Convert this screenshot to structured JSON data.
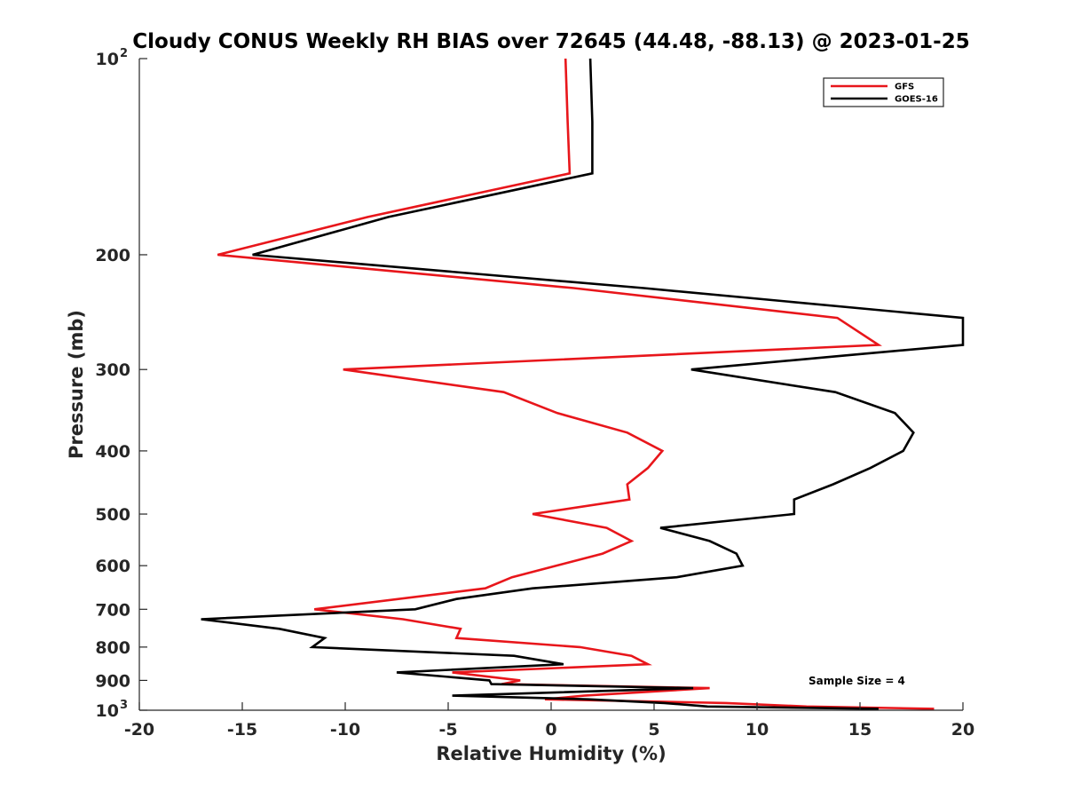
{
  "chart_data": {
    "type": "line",
    "title": "Cloudy CONUS Weekly RH BIAS over 72645 (44.48, -88.13) @ 2023-01-25",
    "xlabel": "Relative Humidity (%)",
    "ylabel": "Pressure (mb)",
    "xlim": [
      -20,
      20
    ],
    "ylim": [
      100,
      1000
    ],
    "yscale": "log",
    "y_reversed": true,
    "grid": false,
    "legend_position": "top-right",
    "x_ticks": [
      {
        "value": -20,
        "label": "-20"
      },
      {
        "value": -15,
        "label": "-15"
      },
      {
        "value": -10,
        "label": "-10"
      },
      {
        "value": -5,
        "label": "-5"
      },
      {
        "value": 0,
        "label": "0"
      },
      {
        "value": 5,
        "label": "5"
      },
      {
        "value": 10,
        "label": "10"
      },
      {
        "value": 15,
        "label": "15"
      },
      {
        "value": 20,
        "label": "20"
      }
    ],
    "y_ticks": [
      {
        "value": 100,
        "label": "10",
        "exponent": "2"
      },
      {
        "value": 200,
        "label": "200"
      },
      {
        "value": 300,
        "label": "300"
      },
      {
        "value": 400,
        "label": "400"
      },
      {
        "value": 500,
        "label": "500"
      },
      {
        "value": 600,
        "label": "600"
      },
      {
        "value": 700,
        "label": "700"
      },
      {
        "value": 800,
        "label": "800"
      },
      {
        "value": 900,
        "label": "900"
      },
      {
        "value": 1000,
        "label": "10",
        "exponent": "3"
      }
    ],
    "annotation": "Sample Size = 4",
    "series": [
      {
        "name": "GFS",
        "color": "#e8161b",
        "points": [
          {
            "x": 0.7,
            "y": 100
          },
          {
            "x": 0.8,
            "y": 125
          },
          {
            "x": 0.9,
            "y": 150
          },
          {
            "x": -8.9,
            "y": 175
          },
          {
            "x": -16.2,
            "y": 200
          },
          {
            "x": 1.1,
            "y": 225
          },
          {
            "x": 13.9,
            "y": 250
          },
          {
            "x": 15.9,
            "y": 275
          },
          {
            "x": -10.1,
            "y": 300
          },
          {
            "x": -2.3,
            "y": 325
          },
          {
            "x": 0.3,
            "y": 350
          },
          {
            "x": 3.7,
            "y": 375
          },
          {
            "x": 5.4,
            "y": 400
          },
          {
            "x": 4.7,
            "y": 425
          },
          {
            "x": 3.7,
            "y": 450
          },
          {
            "x": 3.8,
            "y": 475
          },
          {
            "x": -0.9,
            "y": 500
          },
          {
            "x": 2.7,
            "y": 525
          },
          {
            "x": 3.9,
            "y": 550
          },
          {
            "x": 2.5,
            "y": 575
          },
          {
            "x": -1.9,
            "y": 625
          },
          {
            "x": -3.2,
            "y": 650
          },
          {
            "x": -11.5,
            "y": 700
          },
          {
            "x": -7.2,
            "y": 725
          },
          {
            "x": -4.4,
            "y": 750
          },
          {
            "x": -4.6,
            "y": 775
          },
          {
            "x": 1.4,
            "y": 800
          },
          {
            "x": 3.9,
            "y": 825
          },
          {
            "x": 4.7,
            "y": 850
          },
          {
            "x": -4.8,
            "y": 875
          },
          {
            "x": -1.5,
            "y": 900
          },
          {
            "x": -2.4,
            "y": 912
          },
          {
            "x": 7.7,
            "y": 925
          },
          {
            "x": 1.6,
            "y": 950
          },
          {
            "x": -0.3,
            "y": 962
          },
          {
            "x": 8.5,
            "y": 975
          },
          {
            "x": 12.4,
            "y": 987
          },
          {
            "x": 18.6,
            "y": 995
          }
        ]
      },
      {
        "name": "GOES-16",
        "color": "#000000",
        "points": [
          {
            "x": 1.9,
            "y": 100
          },
          {
            "x": 2.0,
            "y": 125
          },
          {
            "x": 2.0,
            "y": 150
          },
          {
            "x": -7.9,
            "y": 175
          },
          {
            "x": -14.5,
            "y": 200
          },
          {
            "x": 4.5,
            "y": 225
          },
          {
            "x": 20.0,
            "y": 250
          },
          {
            "x": 20.0,
            "y": 275
          },
          {
            "x": 14.5,
            "y": 285
          },
          {
            "x": 6.8,
            "y": 300
          },
          {
            "x": 13.8,
            "y": 325
          },
          {
            "x": 16.7,
            "y": 350
          },
          {
            "x": 17.6,
            "y": 375
          },
          {
            "x": 17.1,
            "y": 400
          },
          {
            "x": 15.5,
            "y": 425
          },
          {
            "x": 13.7,
            "y": 450
          },
          {
            "x": 11.8,
            "y": 475
          },
          {
            "x": 11.8,
            "y": 500
          },
          {
            "x": 5.3,
            "y": 525
          },
          {
            "x": 7.7,
            "y": 550
          },
          {
            "x": 9.0,
            "y": 575
          },
          {
            "x": 9.3,
            "y": 600
          },
          {
            "x": 6.1,
            "y": 625
          },
          {
            "x": -0.9,
            "y": 650
          },
          {
            "x": -4.6,
            "y": 675
          },
          {
            "x": -6.6,
            "y": 700
          },
          {
            "x": -17.0,
            "y": 725
          },
          {
            "x": -13.2,
            "y": 750
          },
          {
            "x": -11.0,
            "y": 775
          },
          {
            "x": -11.6,
            "y": 800
          },
          {
            "x": -1.8,
            "y": 825
          },
          {
            "x": 0.6,
            "y": 850
          },
          {
            "x": -7.5,
            "y": 875
          },
          {
            "x": -3.0,
            "y": 900
          },
          {
            "x": -2.9,
            "y": 912
          },
          {
            "x": 6.9,
            "y": 925
          },
          {
            "x": -4.8,
            "y": 950
          },
          {
            "x": 1.8,
            "y": 962
          },
          {
            "x": 5.5,
            "y": 975
          },
          {
            "x": 7.6,
            "y": 987
          },
          {
            "x": 15.9,
            "y": 995
          }
        ]
      }
    ]
  }
}
